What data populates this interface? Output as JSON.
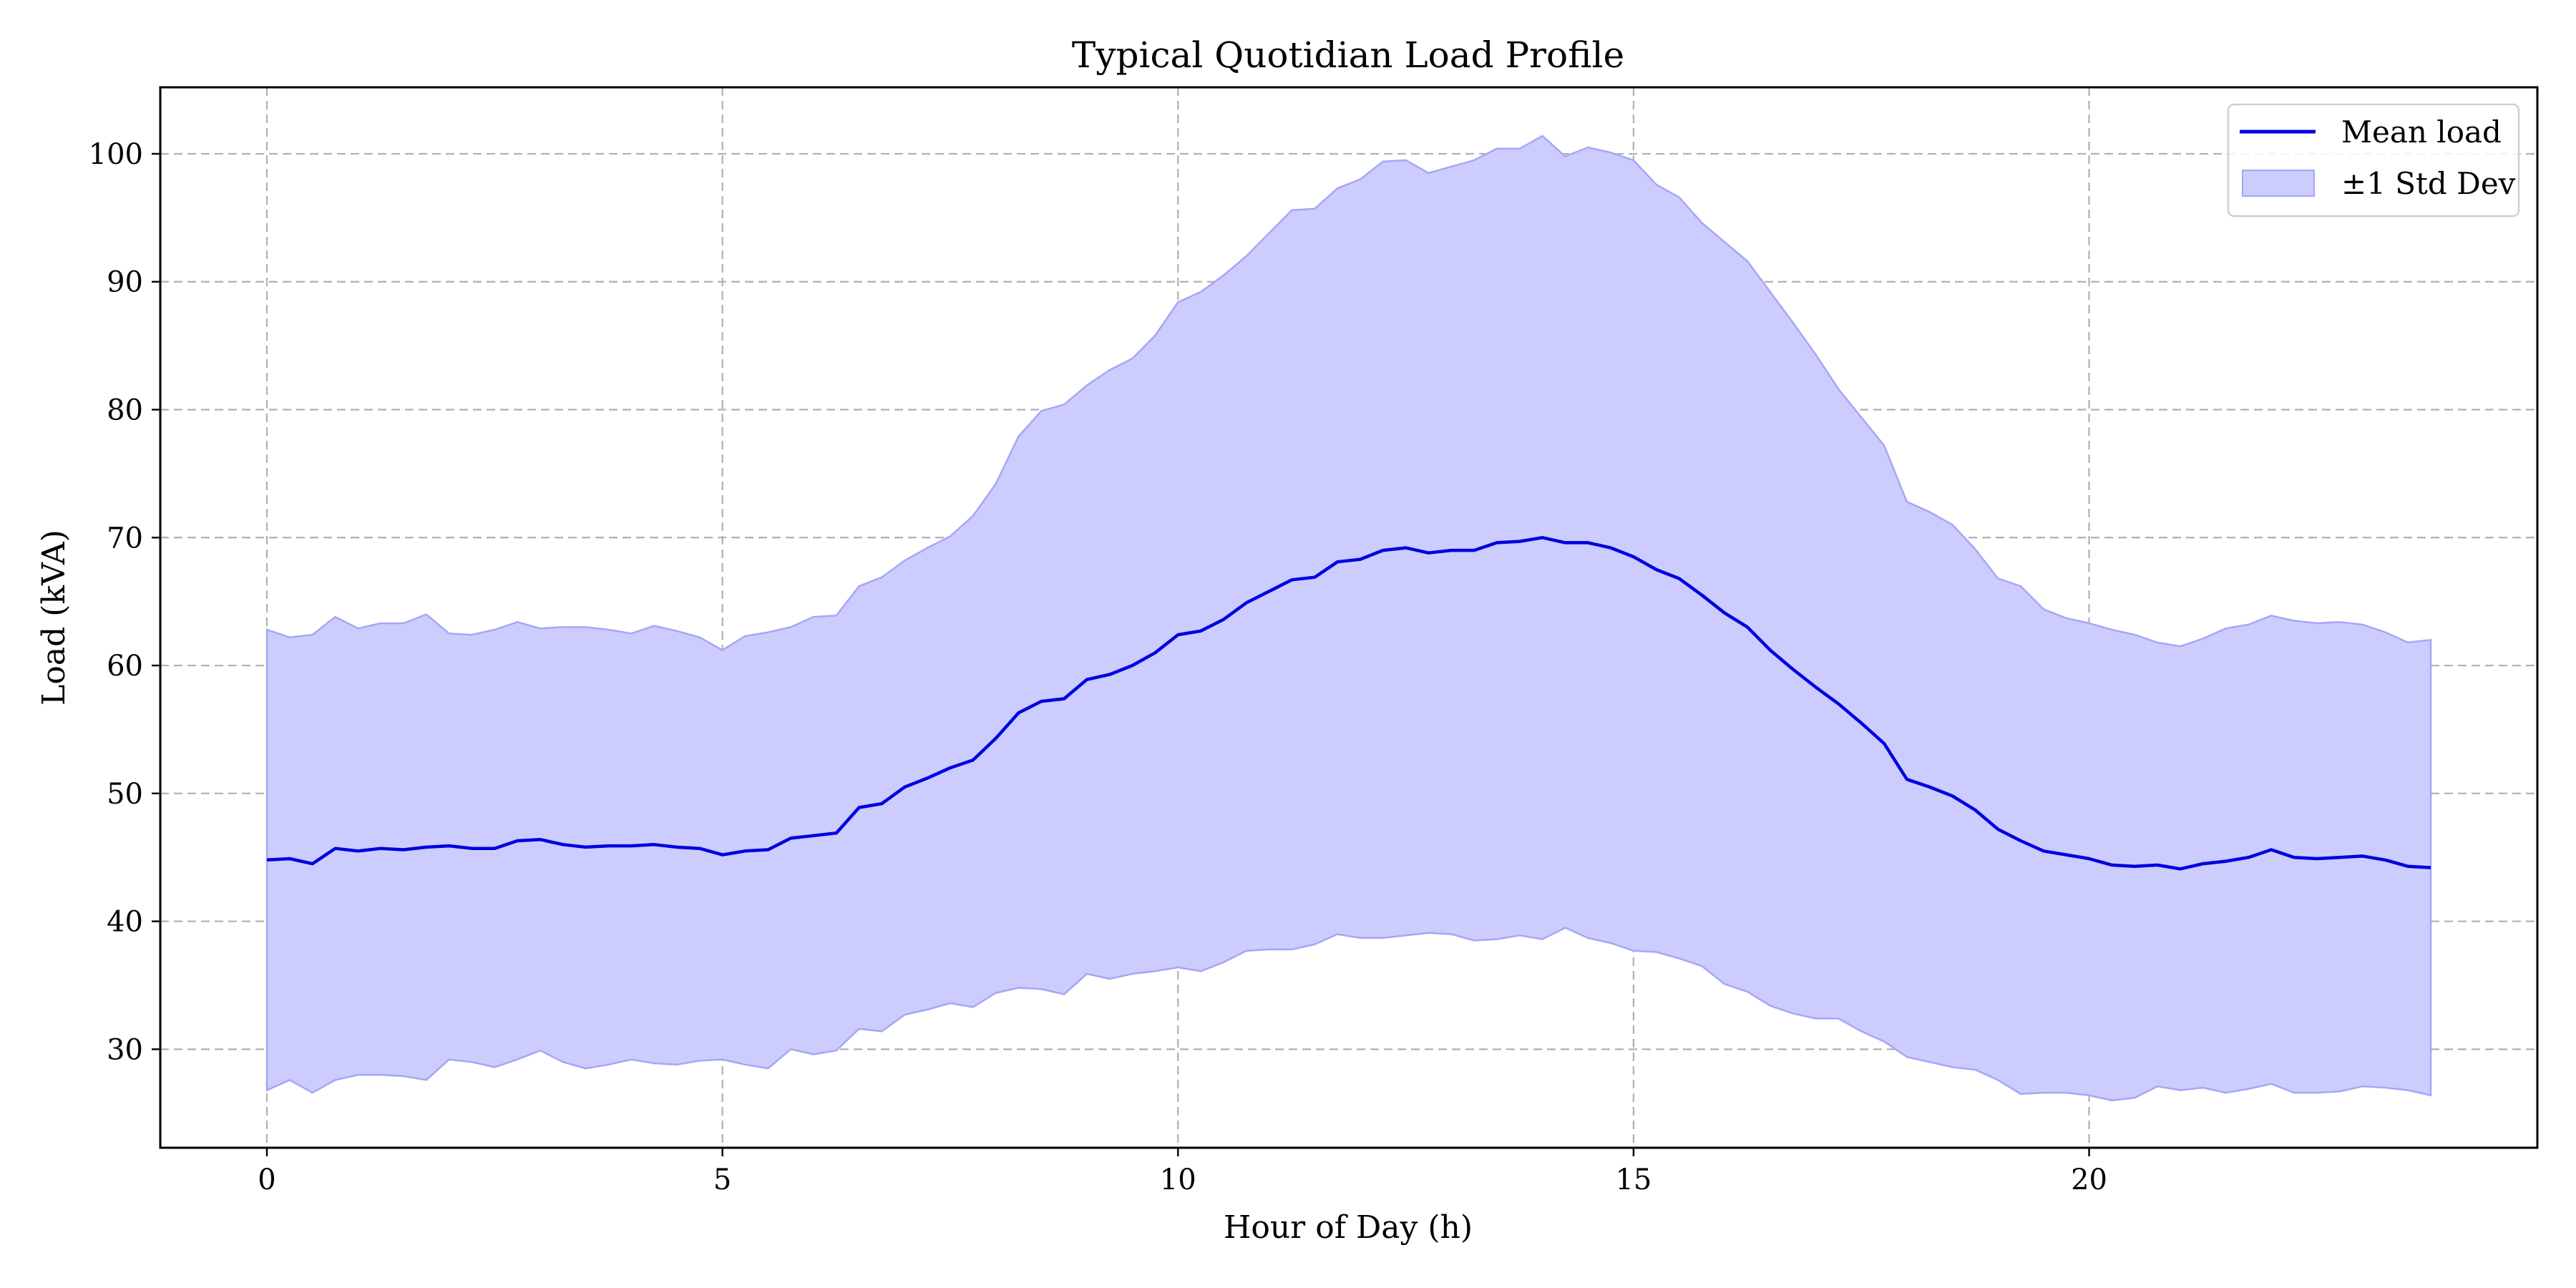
{
  "chart_data": {
    "type": "line",
    "title": "Typical Quotidian Load Profile",
    "xlabel": "Hour of Day (h)",
    "ylabel": "Load (kVA)",
    "xlim": [
      -1.17,
      24.92
    ],
    "ylim": [
      22.3,
      105.2
    ],
    "xticks": [
      0,
      5,
      10,
      15,
      20
    ],
    "yticks": [
      30,
      40,
      50,
      60,
      70,
      80,
      90,
      100
    ],
    "grid": true,
    "legend_position": "top-right",
    "colors": {
      "mean": "#0000e0",
      "band_fill": "#ccccff",
      "band_edge": "#a6a6f5"
    },
    "x": [
      0,
      0.25,
      0.5,
      0.75,
      1,
      1.25,
      1.5,
      1.75,
      2,
      2.25,
      2.5,
      2.75,
      3,
      3.25,
      3.5,
      3.75,
      4,
      4.25,
      4.5,
      4.75,
      5,
      5.25,
      5.5,
      5.75,
      6,
      6.25,
      6.5,
      6.75,
      7,
      7.25,
      7.5,
      7.75,
      8,
      8.25,
      8.5,
      8.75,
      9,
      9.25,
      9.5,
      9.75,
      10,
      10.25,
      10.5,
      10.75,
      11,
      11.25,
      11.5,
      11.75,
      12,
      12.25,
      12.5,
      12.75,
      13,
      13.25,
      13.5,
      13.75,
      14,
      14.25,
      14.5,
      14.75,
      15,
      15.25,
      15.5,
      15.75,
      16,
      16.25,
      16.5,
      16.75,
      17,
      17.25,
      17.5,
      17.75,
      18,
      18.25,
      18.5,
      18.75,
      19,
      19.25,
      19.5,
      19.75,
      20,
      20.25,
      20.5,
      20.75,
      21,
      21.25,
      21.5,
      21.75,
      22,
      22.25,
      22.5,
      22.75,
      23,
      23.25,
      23.5,
      23.75
    ],
    "series": [
      {
        "name": "Mean load",
        "values": [
          44.8,
          44.9,
          44.5,
          45.7,
          45.5,
          45.7,
          45.6,
          45.8,
          45.9,
          45.7,
          45.7,
          46.3,
          46.4,
          46.0,
          45.8,
          45.9,
          45.9,
          46.0,
          45.8,
          45.7,
          45.2,
          45.5,
          45.6,
          46.5,
          46.7,
          46.9,
          48.9,
          49.2,
          50.5,
          51.2,
          52.0,
          52.6,
          54.3,
          56.3,
          57.2,
          57.4,
          58.9,
          59.3,
          60.0,
          61.0,
          62.4,
          62.7,
          63.6,
          64.9,
          65.8,
          66.7,
          66.9,
          68.1,
          68.3,
          69.0,
          69.2,
          68.8,
          69.0,
          69.0,
          69.6,
          69.7,
          70.0,
          69.6,
          69.6,
          69.2,
          68.5,
          67.5,
          66.8,
          65.5,
          64.1,
          63.0,
          61.2,
          59.7,
          58.3,
          57.0,
          55.5,
          53.9,
          51.1,
          50.5,
          49.8,
          48.7,
          47.2,
          46.3,
          45.5,
          45.2,
          44.9,
          44.4,
          44.3,
          44.4,
          44.1,
          44.5,
          44.7,
          45.0,
          45.6,
          45.0,
          44.9,
          45.0,
          45.1,
          44.8,
          44.3,
          44.2
        ]
      },
      {
        "name": "±1 Std Dev",
        "upper": [
          62.8,
          62.2,
          62.4,
          63.8,
          62.9,
          63.3,
          63.3,
          64.0,
          62.5,
          62.4,
          62.8,
          63.4,
          62.9,
          63.0,
          63.0,
          62.8,
          62.5,
          63.1,
          62.7,
          62.2,
          61.2,
          62.3,
          62.6,
          63.0,
          63.8,
          63.9,
          66.2,
          66.9,
          68.2,
          69.2,
          70.1,
          71.7,
          74.2,
          77.9,
          79.9,
          80.4,
          81.9,
          83.1,
          84.0,
          85.8,
          88.4,
          89.2,
          90.5,
          92.0,
          93.8,
          95.6,
          95.7,
          97.3,
          98.0,
          99.4,
          99.5,
          98.5,
          99.0,
          99.5,
          100.4,
          100.4,
          101.4,
          99.8,
          100.5,
          100.1,
          99.5,
          97.6,
          96.6,
          94.6,
          93.1,
          91.6,
          89.2,
          86.8,
          84.3,
          81.6,
          79.4,
          77.2,
          72.8,
          72.0,
          71.0,
          69.1,
          66.8,
          66.2,
          64.4,
          63.7,
          63.3,
          62.8,
          62.4,
          61.8,
          61.5,
          62.1,
          62.9,
          63.2,
          63.9,
          63.5,
          63.3,
          63.4,
          63.2,
          62.6,
          61.8,
          62.0
        ],
        "lower": [
          26.8,
          27.6,
          26.6,
          27.6,
          28.0,
          28.0,
          27.9,
          27.6,
          29.2,
          29.0,
          28.6,
          29.2,
          29.9,
          29.0,
          28.5,
          28.8,
          29.2,
          28.9,
          28.8,
          29.1,
          29.2,
          28.8,
          28.5,
          30.0,
          29.6,
          29.9,
          31.6,
          31.4,
          32.7,
          33.1,
          33.6,
          33.3,
          34.4,
          34.8,
          34.7,
          34.3,
          35.9,
          35.5,
          35.9,
          36.1,
          36.4,
          36.1,
          36.8,
          37.7,
          37.8,
          37.8,
          38.2,
          39.0,
          38.7,
          38.7,
          38.9,
          39.1,
          39.0,
          38.5,
          38.6,
          38.9,
          38.6,
          39.5,
          38.7,
          38.3,
          37.7,
          37.6,
          37.1,
          36.5,
          35.1,
          34.5,
          33.4,
          32.8,
          32.4,
          32.4,
          31.4,
          30.6,
          29.4,
          29.0,
          28.6,
          28.4,
          27.6,
          26.5,
          26.6,
          26.6,
          26.4,
          26.0,
          26.2,
          27.1,
          26.8,
          27.0,
          26.6,
          26.9,
          27.3,
          26.6,
          26.6,
          26.7,
          27.1,
          27.0,
          26.8,
          26.4
        ]
      }
    ]
  }
}
